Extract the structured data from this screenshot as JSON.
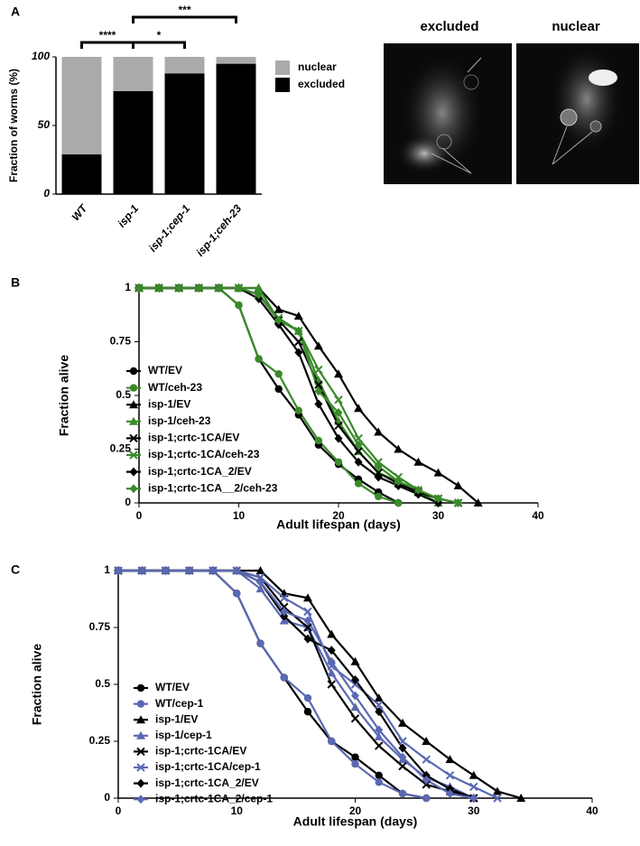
{
  "images": [
    {
      "title": "excluded"
    },
    {
      "title": "nuclear"
    }
  ],
  "chart_data": [
    {
      "type": "stacked_bar",
      "panel": "A",
      "y_label": "Fraction of worms (%)",
      "categories": [
        "WT",
        "isp-1",
        "isp-1;cep-1",
        "isp-1;ceh-23"
      ],
      "series": [
        {
          "name": "excluded",
          "color": "#000000",
          "values": [
            29,
            75,
            88,
            95
          ]
        },
        {
          "name": "nuclear",
          "color": "#aaaaaa",
          "values": [
            71,
            25,
            12,
            5
          ]
        }
      ],
      "ylim": [
        0,
        100
      ],
      "yticks": [
        0,
        50,
        100
      ],
      "legend": "right",
      "annotations": [
        {
          "text": "****",
          "from": 0,
          "to": 1
        },
        {
          "text": "*",
          "from": 1,
          "to": 2
        },
        {
          "text": "***",
          "from": 1,
          "to": 3
        }
      ]
    },
    {
      "type": "line",
      "panel": "B",
      "x_label": "Adult lifespan (days)",
      "y_label": "Fraction alive",
      "x": [
        0,
        2,
        4,
        6,
        8,
        10,
        12,
        14,
        16,
        18,
        20,
        22,
        24,
        26,
        28,
        30,
        32,
        34
      ],
      "xlim": [
        0,
        40
      ],
      "xticks": [
        0,
        10,
        20,
        30,
        40
      ],
      "ylim": [
        0,
        1
      ],
      "yticks": [
        0,
        0.25,
        0.5,
        0.75,
        1
      ],
      "legend": "lower left",
      "series": [
        {
          "name": "WT/EV",
          "color": "#000000",
          "marker": "circle",
          "values": [
            1,
            1,
            1,
            1,
            1,
            0.92,
            0.67,
            0.53,
            0.41,
            0.27,
            0.18,
            0.11,
            0.05,
            0,
            null,
            null,
            null,
            null
          ]
        },
        {
          "name": "WT/ceh-23",
          "color": "#3a8a2a",
          "marker": "circle",
          "values": [
            1,
            1,
            1,
            1,
            1,
            0.92,
            0.67,
            0.6,
            0.43,
            0.29,
            0.19,
            0.09,
            0.03,
            0,
            null,
            null,
            null,
            null
          ]
        },
        {
          "name": "isp-1/EV",
          "color": "#000000",
          "marker": "triangle",
          "values": [
            1,
            1,
            1,
            1,
            1,
            1,
            1,
            0.9,
            0.87,
            0.73,
            0.6,
            0.44,
            0.33,
            0.25,
            0.19,
            0.14,
            0.08,
            0
          ]
        },
        {
          "name": "isp-1/ceh-23",
          "color": "#3a8a2a",
          "marker": "triangle",
          "values": [
            1,
            1,
            1,
            1,
            1,
            1,
            1,
            0.85,
            0.8,
            0.57,
            0.38,
            0.24,
            0.14,
            0.1,
            0.05,
            0,
            null,
            null
          ]
        },
        {
          "name": "isp-1;crtc-1CA/EV",
          "color": "#000000",
          "marker": "x",
          "values": [
            1,
            1,
            1,
            1,
            1,
            1,
            0.97,
            0.85,
            0.75,
            0.55,
            0.36,
            0.24,
            0.14,
            0.09,
            0.05,
            0.02,
            0,
            null
          ]
        },
        {
          "name": "isp-1;crtc-1CA/ceh-23",
          "color": "#3a8a2a",
          "marker": "x",
          "values": [
            1,
            1,
            1,
            1,
            1,
            1,
            0.97,
            0.86,
            0.8,
            0.62,
            0.48,
            0.3,
            0.19,
            0.12,
            0.06,
            0.02,
            0,
            null
          ]
        },
        {
          "name": "isp-1;crtc-1CA_2/EV",
          "color": "#000000",
          "marker": "diamond",
          "values": [
            1,
            1,
            1,
            1,
            1,
            1,
            0.95,
            0.83,
            0.7,
            0.46,
            0.3,
            0.19,
            0.12,
            0.08,
            0.04,
            0,
            null,
            null
          ]
        },
        {
          "name": "isp-1;crtc-1CA__2/ceh-23",
          "color": "#3a8a2a",
          "marker": "diamond",
          "values": [
            1,
            1,
            1,
            1,
            1,
            1,
            0.97,
            0.85,
            0.8,
            0.52,
            0.42,
            0.27,
            0.17,
            0.1,
            0.06,
            0.02,
            0,
            null
          ]
        }
      ]
    },
    {
      "type": "line",
      "panel": "C",
      "x_label": "Adult lifespan (days)",
      "y_label": "Fraction alive",
      "x": [
        0,
        2,
        4,
        6,
        8,
        10,
        12,
        14,
        16,
        18,
        20,
        22,
        24,
        26,
        28,
        30,
        32,
        34
      ],
      "xlim": [
        0,
        40
      ],
      "xticks": [
        0,
        10,
        20,
        30,
        40
      ],
      "ylim": [
        0,
        1
      ],
      "yticks": [
        0,
        0.25,
        0.5,
        0.75,
        1
      ],
      "legend": "lower left",
      "series": [
        {
          "name": "WT/EV",
          "color": "#000000",
          "marker": "circle",
          "values": [
            1,
            1,
            1,
            1,
            1,
            0.9,
            0.68,
            0.53,
            0.38,
            0.25,
            0.18,
            0.1,
            0.02,
            0,
            null,
            null,
            null,
            null
          ]
        },
        {
          "name": "WT/cep-1",
          "color": "#5b69b3",
          "marker": "circle",
          "values": [
            1,
            1,
            1,
            1,
            1,
            0.9,
            0.68,
            0.53,
            0.44,
            0.25,
            0.15,
            0.07,
            0.02,
            0,
            null,
            null,
            null,
            null
          ]
        },
        {
          "name": "isp-1/EV",
          "color": "#000000",
          "marker": "triangle",
          "values": [
            1,
            1,
            1,
            1,
            1,
            1,
            1,
            0.9,
            0.88,
            0.72,
            0.6,
            0.44,
            0.33,
            0.25,
            0.17,
            0.1,
            0.03,
            0
          ]
        },
        {
          "name": "isp-1/cep-1",
          "color": "#5b69b3",
          "marker": "triangle",
          "values": [
            1,
            1,
            1,
            1,
            1,
            1,
            0.92,
            0.78,
            0.75,
            0.55,
            0.4,
            0.27,
            0.17,
            0.09,
            0.05,
            0,
            null,
            null
          ]
        },
        {
          "name": "isp-1;crtc-1CA/EV",
          "color": "#000000",
          "marker": "x",
          "values": [
            1,
            1,
            1,
            1,
            1,
            1,
            0.97,
            0.84,
            0.75,
            0.5,
            0.35,
            0.23,
            0.14,
            0.06,
            0.03,
            0,
            null,
            null
          ]
        },
        {
          "name": "isp-1;crtc-1CA/cep-1",
          "color": "#5b69b3",
          "marker": "x",
          "values": [
            1,
            1,
            1,
            1,
            1,
            1,
            0.97,
            0.88,
            0.82,
            0.58,
            0.5,
            0.41,
            0.25,
            0.17,
            0.1,
            0.05,
            0,
            null
          ]
        },
        {
          "name": "isp-1;crtc-1CA_2/EV",
          "color": "#000000",
          "marker": "diamond",
          "values": [
            1,
            1,
            1,
            1,
            1,
            1,
            0.95,
            0.8,
            0.7,
            0.65,
            0.52,
            0.38,
            0.22,
            0.1,
            0.04,
            0,
            null,
            null
          ]
        },
        {
          "name": "isp-1;crtc-1CA_2/cep-1",
          "color": "#5b69b3",
          "marker": "diamond",
          "values": [
            1,
            1,
            1,
            1,
            1,
            1,
            0.95,
            0.82,
            0.78,
            0.6,
            0.45,
            0.3,
            0.18,
            0.08,
            0.02,
            0,
            null,
            null
          ]
        }
      ]
    }
  ]
}
